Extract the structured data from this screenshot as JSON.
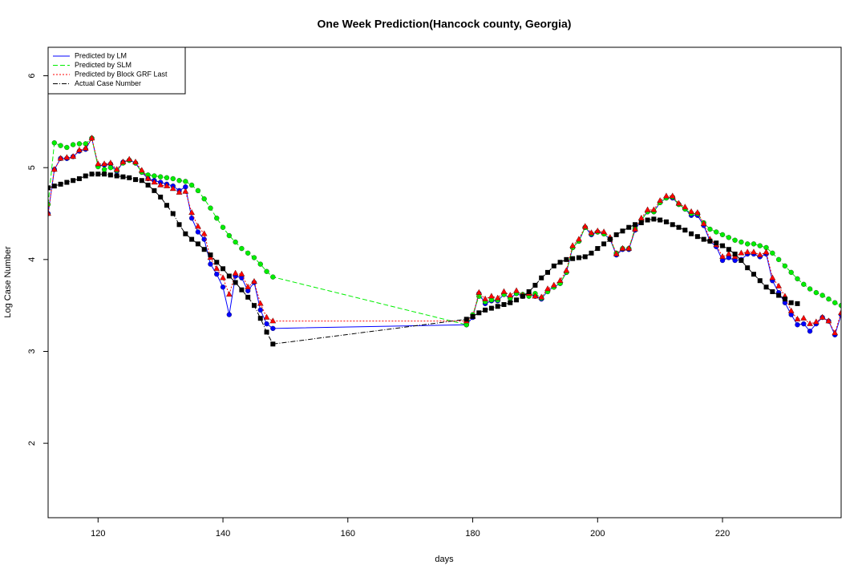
{
  "chart_data": {
    "type": "line",
    "title": "One Week Prediction(Hancock county, Georgia)",
    "x_label": "days",
    "y_label": "Log Case Number",
    "x": [
      112,
      113,
      114,
      115,
      116,
      117,
      118,
      119,
      120,
      121,
      122,
      123,
      124,
      125,
      126,
      127,
      128,
      129,
      130,
      131,
      132,
      133,
      134,
      135,
      136,
      137,
      138,
      139,
      140,
      141,
      142,
      143,
      144,
      145,
      146,
      147,
      148,
      179,
      180,
      181,
      182,
      183,
      184,
      185,
      186,
      187,
      188,
      189,
      190,
      191,
      192,
      193,
      194,
      195,
      196,
      197,
      198,
      199,
      200,
      201,
      202,
      203,
      204,
      205,
      206,
      207,
      208,
      209,
      210,
      211,
      212,
      213,
      214,
      215,
      216,
      217,
      218,
      219,
      220,
      221,
      222,
      223,
      224,
      225,
      226,
      227,
      228,
      229,
      230,
      231,
      232,
      233,
      234,
      235,
      236,
      237,
      238,
      239
    ],
    "xlim": [
      112,
      239
    ],
    "ylim": [
      1.19,
      6.31
    ],
    "xticks": [
      120,
      140,
      160,
      180,
      200,
      220
    ],
    "yticks": [
      2,
      3,
      4,
      5,
      6
    ],
    "legend": "top-left",
    "series": [
      {
        "name": "Predicted by LM",
        "color": "#0000ff",
        "linestyle": "solid",
        "marker": "circle",
        "values": [
          4.5,
          4.98,
          5.1,
          5.1,
          5.12,
          5.18,
          5.2,
          5.32,
          5.02,
          5.03,
          5.04,
          4.96,
          5.06,
          5.08,
          5.05,
          4.95,
          4.88,
          4.86,
          4.84,
          4.82,
          4.8,
          4.75,
          4.79,
          4.45,
          4.3,
          4.22,
          3.95,
          3.84,
          3.7,
          3.4,
          3.82,
          3.8,
          3.66,
          3.75,
          3.45,
          3.3,
          3.25,
          3.29,
          3.37,
          3.63,
          3.52,
          3.55,
          3.55,
          3.62,
          3.58,
          3.63,
          3.6,
          3.63,
          3.6,
          3.57,
          3.66,
          3.7,
          3.74,
          3.86,
          4.13,
          4.2,
          4.35,
          4.27,
          4.3,
          4.28,
          4.22,
          4.05,
          4.11,
          4.11,
          4.32,
          4.43,
          4.52,
          4.52,
          4.62,
          4.67,
          4.67,
          4.6,
          4.55,
          4.48,
          4.48,
          4.37,
          4.2,
          4.14,
          3.99,
          4.02,
          3.99,
          4.0,
          4.06,
          4.06,
          4.03,
          4.06,
          3.77,
          3.64,
          3.53,
          3.4,
          3.29,
          3.3,
          3.22,
          3.3,
          3.37,
          3.33,
          3.18,
          3.4
        ]
      },
      {
        "name": "Predicted by SLM",
        "color": "#00ee00",
        "linestyle": "dashed",
        "marker": "circle",
        "values": [
          4.6,
          5.27,
          5.24,
          5.22,
          5.25,
          5.26,
          5.26,
          5.32,
          5.01,
          4.98,
          5.0,
          4.97,
          5.05,
          5.08,
          5.05,
          4.95,
          4.92,
          4.91,
          4.9,
          4.89,
          4.88,
          4.86,
          4.85,
          4.81,
          4.75,
          4.66,
          4.56,
          4.45,
          4.35,
          4.26,
          4.19,
          4.12,
          4.07,
          4.02,
          3.95,
          3.87,
          3.81,
          3.29,
          3.4,
          3.6,
          3.54,
          3.56,
          3.56,
          3.62,
          3.58,
          3.63,
          3.62,
          3.6,
          3.63,
          3.58,
          3.65,
          3.7,
          3.74,
          3.86,
          4.13,
          4.2,
          4.35,
          4.28,
          4.3,
          4.28,
          4.22,
          4.07,
          4.12,
          4.12,
          4.34,
          4.43,
          4.52,
          4.52,
          4.62,
          4.67,
          4.68,
          4.6,
          4.55,
          4.5,
          4.5,
          4.4,
          4.33,
          4.3,
          4.27,
          4.24,
          4.21,
          4.19,
          4.17,
          4.17,
          4.15,
          4.13,
          4.07,
          4.0,
          3.93,
          3.86,
          3.79,
          3.73,
          3.68,
          3.64,
          3.61,
          3.57,
          3.53,
          3.5
        ]
      },
      {
        "name": "Predicted by Block GRF Last",
        "color": "#ff0000",
        "linestyle": "dotted",
        "marker": "triangle",
        "values": [
          4.5,
          4.98,
          5.1,
          5.11,
          5.12,
          5.19,
          5.21,
          5.32,
          5.04,
          5.04,
          5.05,
          4.98,
          5.06,
          5.09,
          5.06,
          4.97,
          4.88,
          4.84,
          4.81,
          4.8,
          4.77,
          4.73,
          4.74,
          4.51,
          4.36,
          4.28,
          4.02,
          3.9,
          3.8,
          3.62,
          3.85,
          3.84,
          3.7,
          3.76,
          3.52,
          3.37,
          3.33,
          3.33,
          3.38,
          3.64,
          3.57,
          3.6,
          3.58,
          3.65,
          3.61,
          3.66,
          3.61,
          3.63,
          3.6,
          3.59,
          3.68,
          3.72,
          3.77,
          3.88,
          4.15,
          4.22,
          4.36,
          4.29,
          4.31,
          4.3,
          4.24,
          4.06,
          4.12,
          4.12,
          4.33,
          4.45,
          4.54,
          4.54,
          4.64,
          4.69,
          4.69,
          4.61,
          4.57,
          4.52,
          4.51,
          4.39,
          4.22,
          4.16,
          4.03,
          4.06,
          4.03,
          4.07,
          4.08,
          4.08,
          4.05,
          4.08,
          3.8,
          3.71,
          3.6,
          3.44,
          3.35,
          3.36,
          3.3,
          3.32,
          3.37,
          3.33,
          3.2,
          3.42
        ]
      },
      {
        "name": "Actual Case Number",
        "color": "#000000",
        "linestyle": "dashdot",
        "marker": "square",
        "values": [
          4.78,
          4.8,
          4.82,
          4.84,
          4.86,
          4.88,
          4.91,
          4.93,
          4.93,
          4.93,
          4.92,
          4.91,
          4.9,
          4.89,
          4.87,
          4.86,
          4.81,
          4.75,
          4.68,
          4.59,
          4.5,
          4.38,
          4.28,
          4.22,
          4.17,
          4.11,
          4.05,
          3.97,
          3.9,
          3.82,
          3.75,
          3.67,
          3.59,
          3.5,
          3.36,
          3.21,
          3.08,
          3.35,
          3.38,
          3.42,
          3.45,
          3.47,
          3.49,
          3.51,
          3.53,
          3.56,
          3.6,
          3.65,
          3.72,
          3.8,
          3.86,
          3.93,
          3.97,
          4.0,
          4.01,
          4.02,
          4.03,
          4.07,
          4.12,
          4.17,
          4.22,
          4.27,
          4.31,
          4.35,
          4.38,
          4.4,
          4.43,
          4.44,
          4.43,
          4.41,
          4.38,
          4.35,
          4.32,
          4.28,
          4.25,
          4.22,
          4.2,
          4.18,
          4.15,
          4.11,
          4.06,
          3.99,
          3.91,
          3.84,
          3.77,
          3.7,
          3.65,
          3.61,
          3.57,
          3.53,
          3.52,
          null,
          null,
          null,
          null,
          null,
          null,
          null
        ]
      }
    ]
  }
}
